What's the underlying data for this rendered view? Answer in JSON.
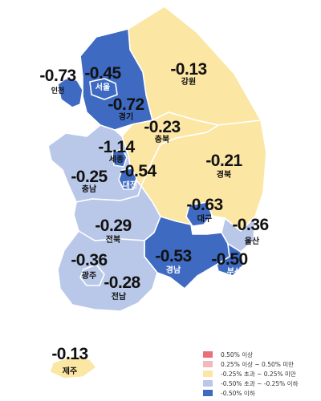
{
  "colors": {
    "up_strong": "#e8707a",
    "up_light": "#f2b8bb",
    "flat": "#fbe6a3",
    "down_light": "#b9c8e8",
    "down_strong": "#3e6ac2"
  },
  "regions": {
    "seoul": {
      "name": "서울",
      "value": "-0.45"
    },
    "incheon": {
      "name": "인천",
      "value": "-0.73"
    },
    "gyeonggi": {
      "name": "경기",
      "value": "-0.72"
    },
    "gangwon": {
      "name": "강원",
      "value": "-0.13"
    },
    "chungbuk": {
      "name": "충북",
      "value": "-0.23"
    },
    "sejong": {
      "name": "세종",
      "value": "-1.14"
    },
    "chungnam": {
      "name": "충남",
      "value": "-0.25"
    },
    "daejeon": {
      "name": "대전",
      "value": "-0.54"
    },
    "gyeongbuk": {
      "name": "경북",
      "value": "-0.21"
    },
    "daegu": {
      "name": "대구",
      "value": "-0.63"
    },
    "ulsan": {
      "name": "울산",
      "value": "-0.36"
    },
    "jeonbuk": {
      "name": "전북",
      "value": "-0.29"
    },
    "gwangju": {
      "name": "광주",
      "value": "-0.36"
    },
    "jeonnam": {
      "name": "전남",
      "value": "-0.28"
    },
    "gyeongnam": {
      "name": "경남",
      "value": "-0.53"
    },
    "busan": {
      "name": "부산",
      "value": "-0.50"
    },
    "jeju": {
      "name": "제주",
      "value": "-0.13"
    }
  },
  "legend": [
    {
      "label": "0.50% 이상",
      "color": "#e8707a"
    },
    {
      "label": "0.25% 이상 ~ 0.50% 미만",
      "color": "#f2b8bb"
    },
    {
      "label": "-0.25% 초과 ~ 0.25% 미만",
      "color": "#fbe6a3"
    },
    {
      "label": "-0.50% 초과 ~ -0.25% 이하",
      "color": "#b9c8e8"
    },
    {
      "label": "-0.50% 이하",
      "color": "#3e6ac2"
    }
  ]
}
